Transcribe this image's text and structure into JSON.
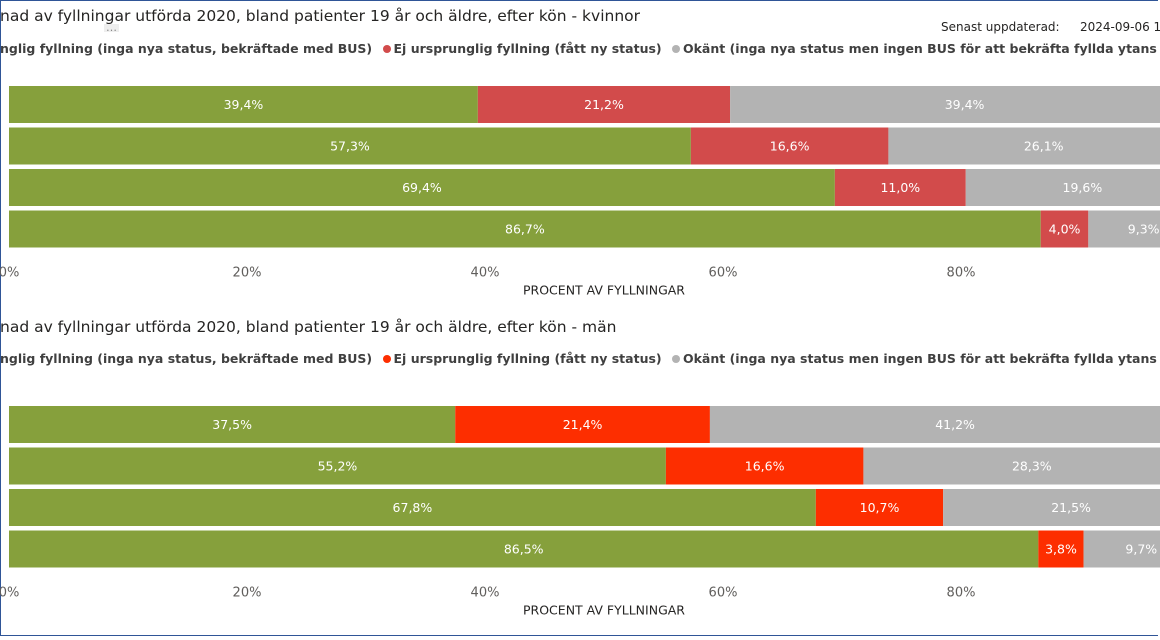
{
  "header": {
    "updated_label": "Senast uppdaterad:",
    "updated_value": "2024-09-06 1"
  },
  "colors": {
    "ursprunglig": "#86a03c",
    "ej_ursprunglig_top": "#d24b4b",
    "ej_ursprunglig_bottom": "#fd2e00",
    "okant": "#b3b3b3"
  },
  "chart_data": [
    {
      "type": "bar",
      "orientation": "horizontal",
      "stacked": "100%",
      "title": "nad av fyllningar utförda 2020, bland patienter 19 år och äldre, efter kön - kvinnor",
      "legend": [
        {
          "name": "nglig fyllning (inga nya status, bekräftade med BUS)",
          "color": "#86a03c"
        },
        {
          "name": "Ej ursprunglig fyllning (fått ny status)",
          "color": "#d24b4b"
        },
        {
          "name": "Okänt (inga nya status men ingen BUS för att bekräfta fyllda ytans status)",
          "color": "#b3b3b3"
        }
      ],
      "series": [
        {
          "values": [
            39.4,
            57.3,
            69.4,
            86.7
          ],
          "labels": [
            "39,4%",
            "57,3%",
            "69,4%",
            "86,7%"
          ]
        },
        {
          "values": [
            21.2,
            16.6,
            11.0,
            4.0
          ],
          "labels": [
            "21,2%",
            "16,6%",
            "11,0%",
            "4,0%"
          ]
        },
        {
          "values": [
            39.4,
            26.1,
            19.6,
            9.3
          ],
          "labels": [
            "39,4%",
            "26,1%",
            "19,6%",
            "9,3%"
          ]
        }
      ],
      "xlabel": "PROCENT AV FYLLNINGAR",
      "xticks": [
        "0%",
        "20%",
        "40%",
        "60%",
        "80%"
      ],
      "xlim": [
        0,
        100
      ],
      "grid": false
    },
    {
      "type": "bar",
      "orientation": "horizontal",
      "stacked": "100%",
      "title": "nad av fyllningar utförda 2020, bland patienter 19 år och äldre, efter kön - män",
      "legend": [
        {
          "name": "nglig fyllning (inga nya status, bekräftade med BUS)",
          "color": "#86a03c"
        },
        {
          "name": "Ej ursprunglig fyllning (fått ny status)",
          "color": "#fd2e00"
        },
        {
          "name": "Okänt (inga nya status men ingen BUS för att bekräfta fyllda ytans status)",
          "color": "#b3b3b3"
        }
      ],
      "series": [
        {
          "values": [
            37.5,
            55.2,
            67.8,
            86.5
          ],
          "labels": [
            "37,5%",
            "55,2%",
            "67,8%",
            "86,5%"
          ]
        },
        {
          "values": [
            21.4,
            16.6,
            10.7,
            3.8
          ],
          "labels": [
            "21,4%",
            "16,6%",
            "10,7%",
            "3,8%"
          ]
        },
        {
          "values": [
            41.2,
            28.3,
            21.5,
            9.7
          ],
          "labels": [
            "41,2%",
            "28,3%",
            "21,5%",
            "9,7%"
          ]
        }
      ],
      "xlabel": "PROCENT AV FYLLNINGAR",
      "xticks": [
        "0%",
        "20%",
        "40%",
        "60%",
        "80%"
      ],
      "xlim": [
        0,
        100
      ],
      "grid": false
    }
  ]
}
